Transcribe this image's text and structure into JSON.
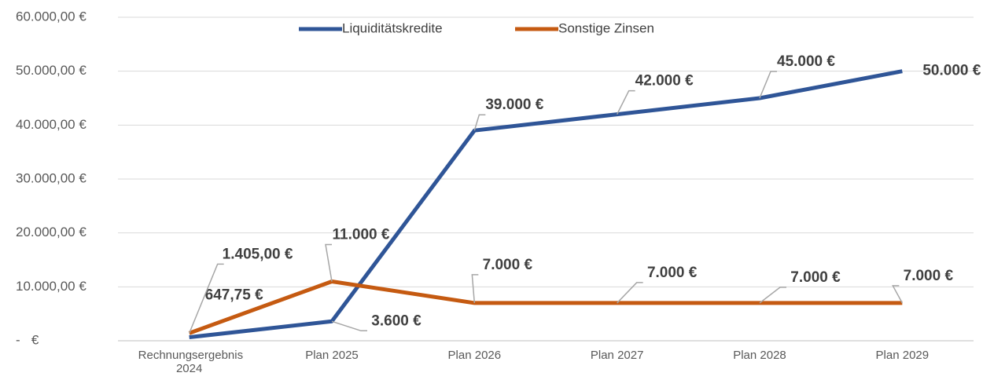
{
  "chart_data": {
    "type": "line",
    "categories": [
      "Rechnungsergebnis 2024",
      "Plan 2025",
      "Plan 2026",
      "Plan 2027",
      "Plan 2028",
      "Plan 2029"
    ],
    "series": [
      {
        "name": "Liquiditätskredite",
        "color": "#2f5597",
        "values": [
          647.75,
          3600,
          39000,
          42000,
          45000,
          50000
        ],
        "value_labels": [
          "647,75 €",
          "3.600 €",
          "39.000 €",
          "42.000 €",
          "45.000 €",
          "50.000 €"
        ]
      },
      {
        "name": "Sonstige Zinsen",
        "color": "#c55a11",
        "values": [
          1405,
          11000,
          7000,
          7000,
          7000,
          7000
        ],
        "value_labels": [
          "1.405,00 €",
          "11.000 €",
          "7.000 €",
          "7.000 €",
          "7.000 €",
          "7.000 €"
        ]
      }
    ],
    "ylim": [
      0,
      60000
    ],
    "yticks": [
      {
        "value": 0,
        "label": "-   €"
      },
      {
        "value": 10000,
        "label": "10.000,00 €"
      },
      {
        "value": 20000,
        "label": "20.000,00 €"
      },
      {
        "value": 30000,
        "label": "30.000,00 €"
      },
      {
        "value": 40000,
        "label": "40.000,00 €"
      },
      {
        "value": 50000,
        "label": "50.000,00 €"
      },
      {
        "value": 60000,
        "label": "60.000,00 €"
      }
    ],
    "grid": true,
    "legend": "top"
  }
}
